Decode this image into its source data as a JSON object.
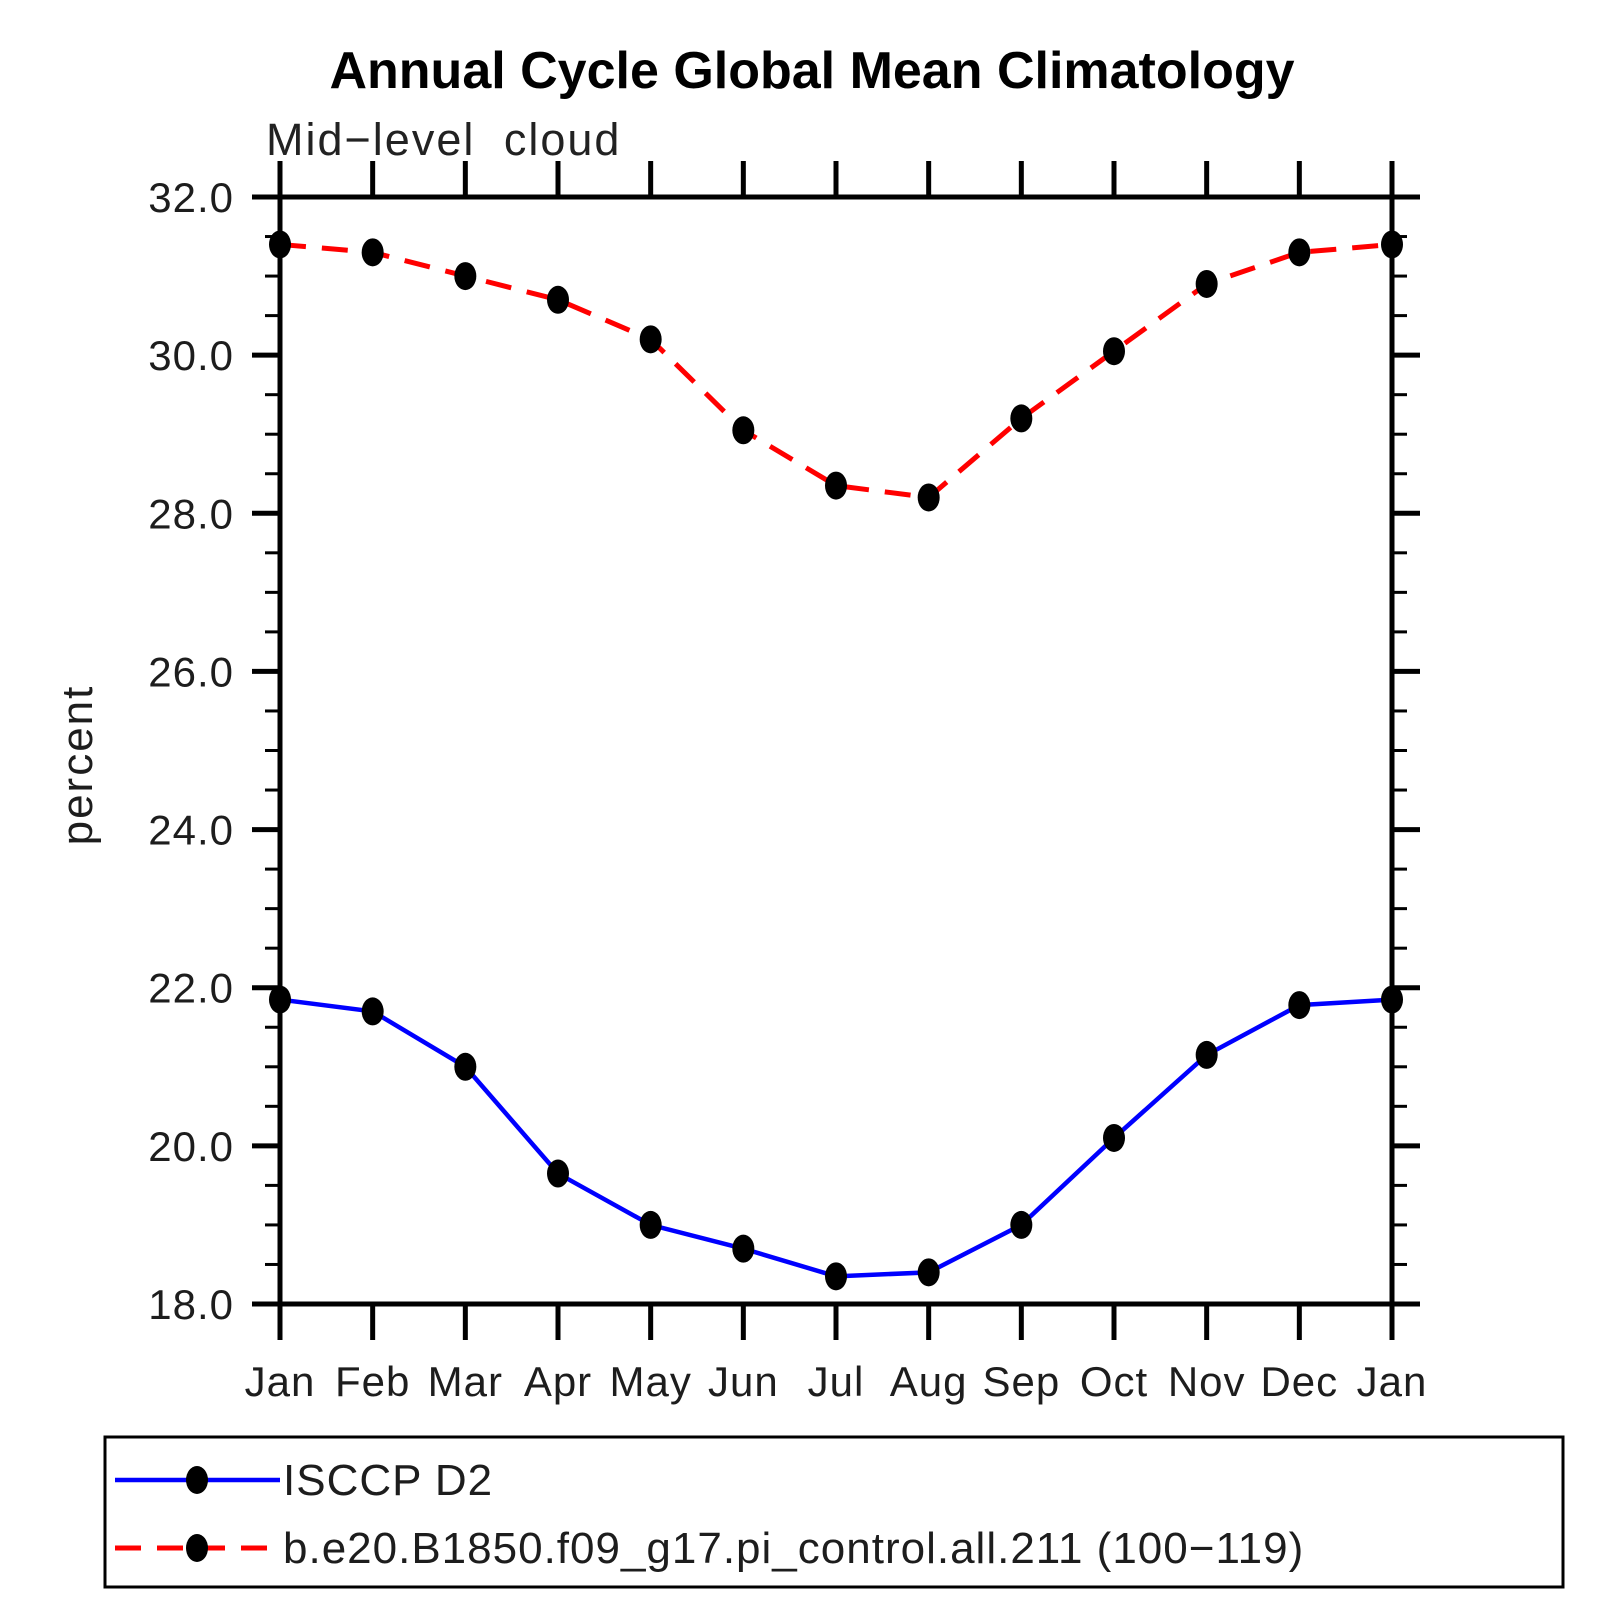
{
  "figure": {
    "title": "Annual Cycle Global Mean Climatology",
    "subtitle": "Mid−level cloud",
    "ylabel": "percent"
  },
  "legend": {
    "entries": [
      {
        "label": "ISCCP D2",
        "line_color": "#0000ff",
        "line_style": "solid",
        "marker": "black-dot"
      },
      {
        "label": "b.e20.B1850.f09_g17.pi_control.all.211 (100−119)",
        "line_color": "#ff0000",
        "line_style": "dashed",
        "marker": "black-dot"
      }
    ]
  },
  "chart_data": {
    "type": "line",
    "title": "Annual Cycle Global Mean Climatology",
    "subtitle": "Mid−level cloud",
    "xlabel": "",
    "ylabel": "percent",
    "categories": [
      "Jan",
      "Feb",
      "Mar",
      "Apr",
      "May",
      "Jun",
      "Jul",
      "Aug",
      "Sep",
      "Oct",
      "Nov",
      "Dec",
      "Jan"
    ],
    "ylim": [
      18.0,
      32.0
    ],
    "ytick_interval": 2.0,
    "yminor_interval": 0.5,
    "ytick_labels": [
      "18.0",
      "20.0",
      "22.0",
      "24.0",
      "26.0",
      "28.0",
      "30.0",
      "32.0"
    ],
    "grid": false,
    "legend_position": "bottom",
    "axis_color": "#000000",
    "marker_color": "#000000",
    "series": [
      {
        "name": "ISCCP D2",
        "color": "#0000ff",
        "style": "solid",
        "marker": "filled-circle",
        "values": [
          21.85,
          21.7,
          21.0,
          19.65,
          19.0,
          18.7,
          18.35,
          18.4,
          19.0,
          20.1,
          21.15,
          21.78,
          21.85
        ]
      },
      {
        "name": "b.e20.B1850.f09_g17.pi_control.all.211 (100−119)",
        "color": "#ff0000",
        "style": "dashed",
        "marker": "filled-circle",
        "values": [
          31.4,
          31.3,
          31.0,
          30.7,
          30.2,
          29.05,
          28.35,
          28.2,
          29.2,
          30.05,
          30.9,
          31.3,
          31.4
        ]
      }
    ]
  }
}
